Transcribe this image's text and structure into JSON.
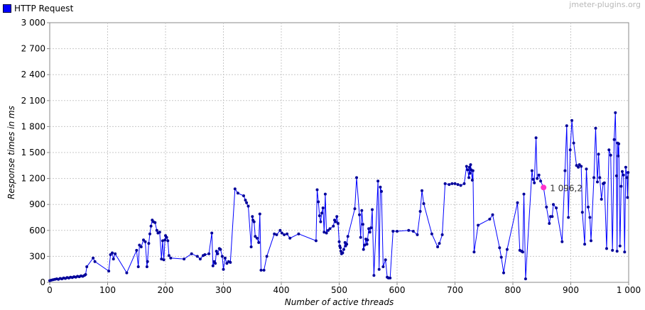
{
  "legend": {
    "label": "HTTP Request",
    "color": "#0000ff"
  },
  "watermark": "jmeter-plugins.org",
  "chart_data": {
    "type": "line",
    "xlabel": "Number of active threads",
    "ylabel": "Response times in ms",
    "xlim": [
      0,
      1000
    ],
    "ylim": [
      0,
      3000
    ],
    "xticks": [
      0,
      100,
      200,
      300,
      400,
      500,
      600,
      700,
      800,
      900,
      1000
    ],
    "xtick_labels": [
      "0",
      "100",
      "200",
      "300",
      "400",
      "500",
      "600",
      "700",
      "800",
      "900",
      "1 000"
    ],
    "yticks": [
      0,
      300,
      600,
      900,
      1200,
      1500,
      1800,
      2100,
      2400,
      2700,
      3000
    ],
    "ytick_labels": [
      "0",
      "300",
      "600",
      "900",
      "1 200",
      "1 500",
      "1 800",
      "2 100",
      "2 400",
      "2 700",
      "3 000"
    ],
    "grid": true,
    "legend_position": "top-left",
    "series": [
      {
        "name": "HTTP Request",
        "color": "#0000ff",
        "points": [
          [
            0,
            20
          ],
          [
            3,
            25
          ],
          [
            6,
            30
          ],
          [
            9,
            35
          ],
          [
            12,
            40
          ],
          [
            15,
            35
          ],
          [
            18,
            45
          ],
          [
            21,
            40
          ],
          [
            24,
            50
          ],
          [
            27,
            45
          ],
          [
            30,
            55
          ],
          [
            33,
            50
          ],
          [
            36,
            60
          ],
          [
            39,
            55
          ],
          [
            42,
            65
          ],
          [
            45,
            60
          ],
          [
            48,
            70
          ],
          [
            51,
            65
          ],
          [
            54,
            75
          ],
          [
            57,
            70
          ],
          [
            60,
            80
          ],
          [
            62,
            90
          ],
          [
            64,
            180
          ],
          [
            75,
            280
          ],
          [
            78,
            240
          ],
          [
            102,
            130
          ],
          [
            105,
            320
          ],
          [
            108,
            340
          ],
          [
            110,
            270
          ],
          [
            113,
            330
          ],
          [
            133,
            110
          ],
          [
            150,
            370
          ],
          [
            153,
            180
          ],
          [
            155,
            430
          ],
          [
            158,
            410
          ],
          [
            162,
            490
          ],
          [
            165,
            470
          ],
          [
            168,
            180
          ],
          [
            169,
            240
          ],
          [
            171,
            450
          ],
          [
            173,
            560
          ],
          [
            175,
            650
          ],
          [
            177,
            720
          ],
          [
            179,
            700
          ],
          [
            182,
            690
          ],
          [
            185,
            600
          ],
          [
            187,
            570
          ],
          [
            190,
            580
          ],
          [
            193,
            270
          ],
          [
            195,
            480
          ],
          [
            197,
            260
          ],
          [
            199,
            490
          ],
          [
            200,
            540
          ],
          [
            202,
            520
          ],
          [
            204,
            480
          ],
          [
            206,
            310
          ],
          [
            209,
            280
          ],
          [
            232,
            270
          ],
          [
            245,
            330
          ],
          [
            255,
            300
          ],
          [
            260,
            270
          ],
          [
            265,
            310
          ],
          [
            268,
            320
          ],
          [
            275,
            330
          ],
          [
            280,
            570
          ],
          [
            282,
            190
          ],
          [
            284,
            240
          ],
          [
            286,
            220
          ],
          [
            288,
            360
          ],
          [
            290,
            330
          ],
          [
            293,
            390
          ],
          [
            295,
            380
          ],
          [
            298,
            300
          ],
          [
            300,
            150
          ],
          [
            303,
            280
          ],
          [
            306,
            220
          ],
          [
            309,
            240
          ],
          [
            312,
            230
          ],
          [
            320,
            1080
          ],
          [
            325,
            1030
          ],
          [
            335,
            1000
          ],
          [
            338,
            950
          ],
          [
            340,
            920
          ],
          [
            343,
            880
          ],
          [
            348,
            410
          ],
          [
            350,
            760
          ],
          [
            351,
            720
          ],
          [
            353,
            700
          ],
          [
            355,
            530
          ],
          [
            358,
            510
          ],
          [
            361,
            460
          ],
          [
            363,
            790
          ],
          [
            365,
            140
          ],
          [
            370,
            140
          ],
          [
            375,
            300
          ],
          [
            388,
            560
          ],
          [
            392,
            550
          ],
          [
            398,
            600
          ],
          [
            401,
            570
          ],
          [
            405,
            550
          ],
          [
            410,
            560
          ],
          [
            415,
            510
          ],
          [
            430,
            560
          ],
          [
            460,
            480
          ],
          [
            462,
            1070
          ],
          [
            464,
            930
          ],
          [
            466,
            770
          ],
          [
            468,
            700
          ],
          [
            470,
            800
          ],
          [
            472,
            860
          ],
          [
            474,
            580
          ],
          [
            476,
            1020
          ],
          [
            478,
            570
          ],
          [
            481,
            600
          ],
          [
            484,
            620
          ],
          [
            490,
            650
          ],
          [
            492,
            720
          ],
          [
            494,
            700
          ],
          [
            496,
            760
          ],
          [
            498,
            680
          ],
          [
            500,
            470
          ],
          [
            501,
            420
          ],
          [
            502,
            400
          ],
          [
            503,
            360
          ],
          [
            504,
            330
          ],
          [
            506,
            340
          ],
          [
            508,
            380
          ],
          [
            510,
            460
          ],
          [
            511,
            420
          ],
          [
            513,
            440
          ],
          [
            515,
            530
          ],
          [
            527,
            850
          ],
          [
            530,
            1210
          ],
          [
            535,
            780
          ],
          [
            537,
            520
          ],
          [
            539,
            830
          ],
          [
            541,
            670
          ],
          [
            542,
            380
          ],
          [
            544,
            430
          ],
          [
            546,
            500
          ],
          [
            548,
            440
          ],
          [
            549,
            490
          ],
          [
            551,
            620
          ],
          [
            553,
            580
          ],
          [
            555,
            630
          ],
          [
            557,
            840
          ],
          [
            560,
            80
          ],
          [
            567,
            1170
          ],
          [
            569,
            150
          ],
          [
            571,
            1100
          ],
          [
            573,
            1050
          ],
          [
            576,
            180
          ],
          [
            580,
            260
          ],
          [
            583,
            60
          ],
          [
            585,
            50
          ],
          [
            588,
            50
          ],
          [
            593,
            590
          ],
          [
            600,
            590
          ],
          [
            620,
            600
          ],
          [
            628,
            590
          ],
          [
            635,
            550
          ],
          [
            640,
            820
          ],
          [
            643,
            1060
          ],
          [
            646,
            910
          ],
          [
            660,
            560
          ],
          [
            670,
            410
          ],
          [
            673,
            450
          ],
          [
            678,
            550
          ],
          [
            683,
            1140
          ],
          [
            690,
            1130
          ],
          [
            695,
            1140
          ],
          [
            700,
            1140
          ],
          [
            705,
            1130
          ],
          [
            710,
            1120
          ],
          [
            716,
            1140
          ],
          [
            720,
            1340
          ],
          [
            722,
            1300
          ],
          [
            724,
            1210
          ],
          [
            725,
            1330
          ],
          [
            726,
            1260
          ],
          [
            727,
            1360
          ],
          [
            728,
            1300
          ],
          [
            730,
            1180
          ],
          [
            731,
            1290
          ],
          [
            733,
            350
          ],
          [
            740,
            660
          ],
          [
            760,
            730
          ],
          [
            765,
            780
          ],
          [
            777,
            400
          ],
          [
            780,
            290
          ],
          [
            784,
            110
          ],
          [
            790,
            380
          ],
          [
            808,
            920
          ],
          [
            812,
            370
          ],
          [
            815,
            360
          ],
          [
            817,
            350
          ],
          [
            819,
            1020
          ],
          [
            822,
            40
          ],
          [
            833,
            1290
          ],
          [
            835,
            1190
          ],
          [
            837,
            1150
          ],
          [
            840,
            1670
          ],
          [
            842,
            1200
          ],
          [
            845,
            1240
          ],
          [
            848,
            1170
          ],
          [
            853,
            1096
          ],
          [
            858,
            870
          ],
          [
            863,
            680
          ],
          [
            865,
            760
          ],
          [
            868,
            760
          ],
          [
            870,
            900
          ],
          [
            875,
            860
          ],
          [
            885,
            470
          ],
          [
            890,
            1290
          ],
          [
            893,
            1810
          ],
          [
            896,
            750
          ],
          [
            899,
            1530
          ],
          [
            902,
            1870
          ],
          [
            905,
            1610
          ],
          [
            910,
            1350
          ],
          [
            913,
            1330
          ],
          [
            915,
            1360
          ],
          [
            918,
            1340
          ],
          [
            920,
            810
          ],
          [
            924,
            440
          ],
          [
            927,
            1310
          ],
          [
            930,
            870
          ],
          [
            933,
            750
          ],
          [
            935,
            480
          ],
          [
            940,
            1210
          ],
          [
            943,
            1780
          ],
          [
            946,
            1160
          ],
          [
            948,
            1480
          ],
          [
            950,
            1210
          ],
          [
            953,
            960
          ],
          [
            956,
            1140
          ],
          [
            958,
            1150
          ],
          [
            962,
            390
          ],
          [
            966,
            1530
          ],
          [
            969,
            1470
          ],
          [
            972,
            370
          ],
          [
            975,
            1650
          ],
          [
            977,
            1960
          ],
          [
            979,
            1230
          ],
          [
            980,
            360
          ],
          [
            981,
            1610
          ],
          [
            982,
            1460
          ],
          [
            983,
            1600
          ],
          [
            985,
            420
          ],
          [
            987,
            1110
          ],
          [
            989,
            1280
          ],
          [
            991,
            1240
          ],
          [
            993,
            350
          ],
          [
            995,
            1330
          ],
          [
            997,
            1210
          ],
          [
            998,
            980
          ],
          [
            999,
            1270
          ]
        ]
      }
    ],
    "highlight": {
      "x": 853,
      "y": 1096,
      "label": "1 096,2",
      "color": "#ff33cc"
    }
  }
}
